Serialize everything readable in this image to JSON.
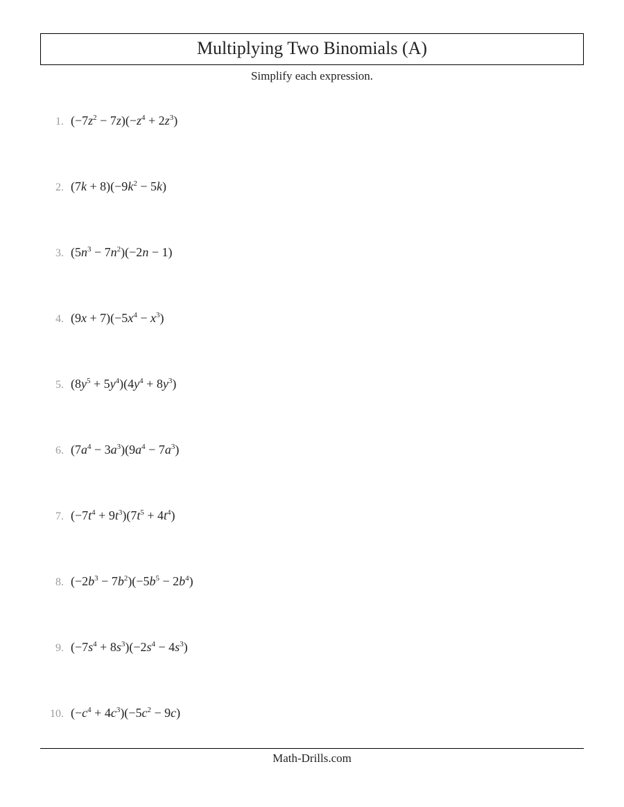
{
  "header": {
    "title": "Multiplying Two Binomials (A)",
    "subtitle": "Simplify each expression."
  },
  "problems": [
    {
      "number": "1.",
      "var": "z",
      "t1a_c": "−7",
      "t1a_e": "2",
      "t1b_s": " − ",
      "t1b_c": "7",
      "t1b_e": "",
      "t2a_c": "−",
      "t2a_e": "4",
      "t2b_s": " + ",
      "t2b_c": "2",
      "t2b_e": "3"
    },
    {
      "number": "2.",
      "var": "k",
      "t1a_c": "7",
      "t1a_e": "",
      "t1b_s": " + ",
      "t1b_c": "8",
      "t1b_e": null,
      "t2a_c": "−9",
      "t2a_e": "2",
      "t2b_s": " − ",
      "t2b_c": "5",
      "t2b_e": ""
    },
    {
      "number": "3.",
      "var": "n",
      "t1a_c": "5",
      "t1a_e": "3",
      "t1b_s": " − ",
      "t1b_c": "7",
      "t1b_e": "2",
      "t2a_c": "−2",
      "t2a_e": "",
      "t2b_s": " − ",
      "t2b_c": "1",
      "t2b_e": null
    },
    {
      "number": "4.",
      "var": "x",
      "t1a_c": "9",
      "t1a_e": "",
      "t1b_s": " + ",
      "t1b_c": "7",
      "t1b_e": null,
      "t2a_c": "−5",
      "t2a_e": "4",
      "t2b_s": " − ",
      "t2b_c": "",
      "t2b_e": "3"
    },
    {
      "number": "5.",
      "var": "y",
      "t1a_c": "8",
      "t1a_e": "5",
      "t1b_s": " + ",
      "t1b_c": "5",
      "t1b_e": "4",
      "t2a_c": "4",
      "t2a_e": "4",
      "t2b_s": " + ",
      "t2b_c": "8",
      "t2b_e": "3"
    },
    {
      "number": "6.",
      "var": "a",
      "t1a_c": "7",
      "t1a_e": "4",
      "t1b_s": " − ",
      "t1b_c": "3",
      "t1b_e": "3",
      "t2a_c": "9",
      "t2a_e": "4",
      "t2b_s": " − ",
      "t2b_c": "7",
      "t2b_e": "3"
    },
    {
      "number": "7.",
      "var": "t",
      "t1a_c": "−7",
      "t1a_e": "4",
      "t1b_s": " + ",
      "t1b_c": "9",
      "t1b_e": "3",
      "t2a_c": "7",
      "t2a_e": "5",
      "t2b_s": " + ",
      "t2b_c": "4",
      "t2b_e": "4"
    },
    {
      "number": "8.",
      "var": "b",
      "t1a_c": "−2",
      "t1a_e": "3",
      "t1b_s": " − ",
      "t1b_c": "7",
      "t1b_e": "2",
      "t2a_c": "−5",
      "t2a_e": "5",
      "t2b_s": " − ",
      "t2b_c": "2",
      "t2b_e": "4"
    },
    {
      "number": "9.",
      "var": "s",
      "t1a_c": "−7",
      "t1a_e": "4",
      "t1b_s": " + ",
      "t1b_c": "8",
      "t1b_e": "3",
      "t2a_c": "−2",
      "t2a_e": "4",
      "t2b_s": " − ",
      "t2b_c": "4",
      "t2b_e": "3"
    },
    {
      "number": "10.",
      "var": "c",
      "t1a_c": "−",
      "t1a_e": "4",
      "t1b_s": " + ",
      "t1b_c": "4",
      "t1b_e": "3",
      "t2a_c": "−5",
      "t2a_e": "2",
      "t2b_s": " − ",
      "t2b_c": "9",
      "t2b_e": ""
    }
  ],
  "footer": "Math-Drills.com",
  "colors": {
    "text": "#222222",
    "number_muted": "#9a9a9a",
    "border": "#000000",
    "background": "#ffffff"
  },
  "typography": {
    "font_family": "Times New Roman",
    "title_fontsize": 26,
    "subtitle_fontsize": 17,
    "expression_fontsize": 18,
    "number_fontsize": 16,
    "footer_fontsize": 17
  }
}
